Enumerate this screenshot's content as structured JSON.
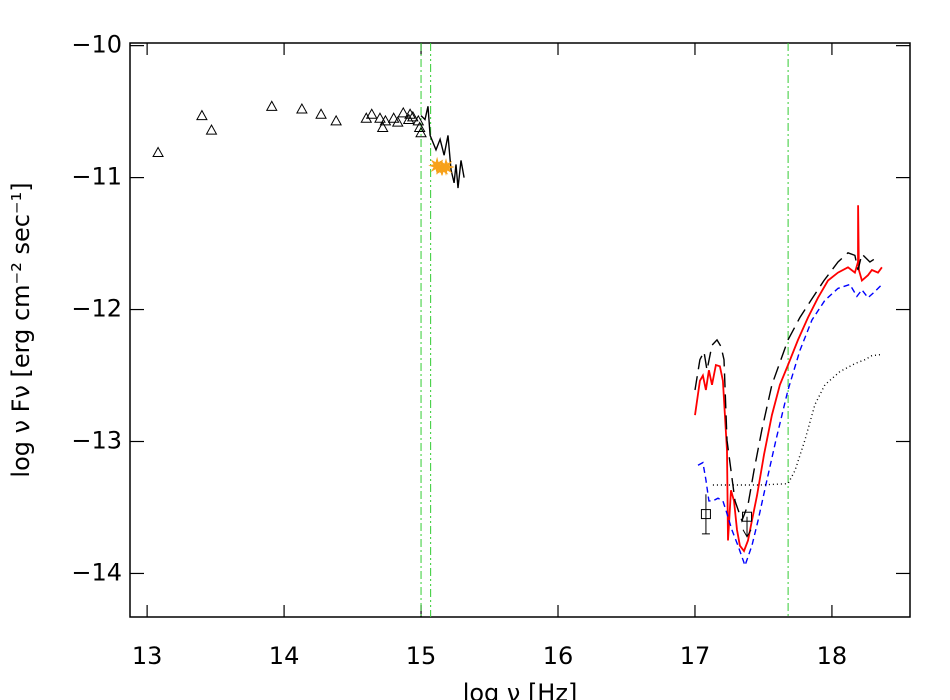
{
  "chart_data": {
    "type": "line",
    "xlabel": "log ν [Hz]",
    "ylabel": "log ν Fν [erg cm⁻² sec⁻¹]",
    "xlim": [
      12.875,
      18.57
    ],
    "ylim": [
      -14.33,
      -9.98
    ],
    "xticks": [
      13,
      14,
      15,
      16,
      17,
      18
    ],
    "yticks": [
      {
        "value": -10,
        "label": "−10"
      },
      {
        "value": -11,
        "label": "−11"
      },
      {
        "value": -12,
        "label": "−12"
      },
      {
        "value": -13,
        "label": "−13"
      },
      {
        "value": -14,
        "label": "−14"
      }
    ],
    "vlines": [
      {
        "x": 15.0,
        "color": "#33cc33",
        "style": "dashdot"
      },
      {
        "x": 15.07,
        "color": "#33cc33",
        "style": "dashdotdot"
      },
      {
        "x": 17.68,
        "color": "#33cc33",
        "style": "dashdot"
      }
    ],
    "series": [
      {
        "mark": "triangle",
        "color": "#000000",
        "x": [
          13.08,
          13.4,
          13.47,
          13.91,
          14.13,
          14.27,
          14.38,
          14.6,
          14.64,
          14.7,
          14.74,
          14.72,
          14.8,
          14.83,
          14.87,
          14.91,
          14.94,
          14.98,
          14.99,
          15.0,
          14.92
        ],
        "values": [
          -10.81,
          -10.53,
          -10.64,
          -10.46,
          -10.48,
          -10.52,
          -10.57,
          -10.55,
          -10.52,
          -10.55,
          -10.57,
          -10.62,
          -10.55,
          -10.58,
          -10.51,
          -10.56,
          -10.54,
          -10.57,
          -10.62,
          -10.66,
          -10.52
        ]
      },
      {
        "mark": "line",
        "style": "solid",
        "color": "#000000",
        "x": [
          15.0,
          15.029,
          15.051,
          15.066,
          15.109,
          15.139,
          15.168,
          15.197,
          15.219,
          15.241,
          15.255,
          15.27,
          15.292,
          15.314
        ],
        "values": [
          -10.53,
          -10.56,
          -10.46,
          -10.68,
          -10.79,
          -10.71,
          -10.83,
          -10.68,
          -10.94,
          -11.04,
          -10.9,
          -11.08,
          -10.87,
          -11.0
        ]
      },
      {
        "mark": "star",
        "color": "#f7a11a",
        "x": [
          15.117,
          15.153,
          15.182
        ],
        "values": [
          -10.91,
          -10.93,
          -10.92
        ]
      },
      {
        "mark": "line",
        "style": "solid",
        "color": "#ff0000",
        "x": [
          17.0,
          17.036,
          17.058,
          17.08,
          17.102,
          17.124,
          17.153,
          17.182,
          17.204,
          17.234,
          17.241,
          17.263,
          17.285,
          17.307,
          17.328,
          17.358,
          17.387,
          17.416,
          17.453,
          17.504,
          17.562,
          17.62,
          17.679,
          17.752,
          17.825,
          17.898,
          17.971,
          18.044,
          18.117,
          18.168,
          18.19,
          18.191,
          18.197,
          18.219,
          18.263,
          18.292,
          18.336,
          18.365
        ],
        "values": [
          -12.8,
          -12.54,
          -12.5,
          -12.61,
          -12.46,
          -12.57,
          -12.42,
          -12.43,
          -12.54,
          -13.07,
          -13.75,
          -13.37,
          -13.45,
          -13.67,
          -13.79,
          -13.83,
          -13.75,
          -13.6,
          -13.41,
          -13.1,
          -12.8,
          -12.57,
          -12.42,
          -12.23,
          -12.06,
          -11.91,
          -11.78,
          -11.72,
          -11.68,
          -11.72,
          -11.64,
          -11.21,
          -11.7,
          -11.78,
          -11.74,
          -11.7,
          -11.72,
          -11.68
        ]
      },
      {
        "mark": "line",
        "style": "longdash",
        "color": "#000000",
        "x": [
          17.0,
          17.036,
          17.066,
          17.088,
          17.124,
          17.161,
          17.19,
          17.212,
          17.234,
          17.292,
          17.343,
          17.387,
          17.431,
          17.489,
          17.562,
          17.679,
          17.766,
          17.847,
          17.942,
          18.044,
          18.117,
          18.168,
          18.19,
          18.219,
          18.277,
          18.321
        ],
        "values": [
          -12.61,
          -12.38,
          -12.32,
          -12.46,
          -12.27,
          -12.23,
          -12.28,
          -12.38,
          -12.99,
          -13.45,
          -13.6,
          -13.48,
          -13.22,
          -12.91,
          -12.57,
          -12.23,
          -12.06,
          -11.93,
          -11.78,
          -11.64,
          -11.57,
          -11.59,
          -11.7,
          -11.58,
          -11.64,
          -11.61
        ]
      },
      {
        "mark": "line",
        "style": "dash",
        "color": "#0000ff",
        "x": [
          17.022,
          17.058,
          17.08,
          17.102,
          17.131,
          17.168,
          17.204,
          17.226,
          17.27,
          17.314,
          17.365,
          17.416,
          17.46,
          17.526,
          17.591,
          17.679,
          17.766,
          17.854,
          17.949,
          18.044,
          18.131,
          18.182,
          18.219,
          18.263,
          18.307,
          18.365
        ],
        "values": [
          -13.18,
          -13.16,
          -13.29,
          -13.45,
          -13.45,
          -13.43,
          -13.45,
          -13.52,
          -13.67,
          -13.79,
          -13.94,
          -13.79,
          -13.6,
          -13.29,
          -12.99,
          -12.61,
          -12.31,
          -12.08,
          -11.93,
          -11.84,
          -11.81,
          -11.9,
          -11.85,
          -11.91,
          -11.87,
          -11.81
        ]
      },
      {
        "mark": "line",
        "style": "dot",
        "color": "#000000",
        "x": [
          17.131,
          17.328,
          17.474,
          17.679,
          17.73,
          17.803,
          17.876,
          17.949,
          18.058,
          18.168,
          18.241,
          18.292,
          18.365
        ],
        "values": [
          -13.33,
          -13.33,
          -13.33,
          -13.32,
          -13.22,
          -12.99,
          -12.72,
          -12.57,
          -12.47,
          -12.41,
          -12.38,
          -12.35,
          -12.34
        ]
      },
      {
        "mark": "square",
        "color": "#000000",
        "x": [
          17.08
        ],
        "values": [
          -13.55
        ],
        "yerr": [
          0.15
        ]
      },
      {
        "mark": "square",
        "color": "#000000",
        "upper_limit": true,
        "x": [
          17.38
        ],
        "values": [
          -13.57
        ]
      }
    ]
  }
}
